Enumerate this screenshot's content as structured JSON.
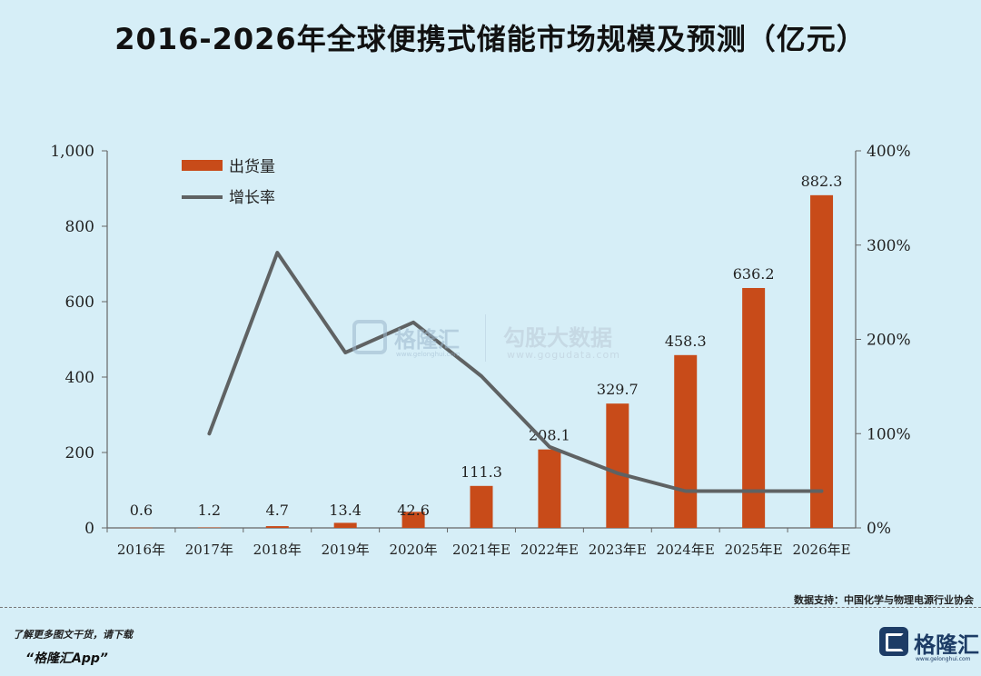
{
  "title": "2016-2026年全球便携式储能市场规模及预测（亿元）",
  "chart_data": {
    "type": "bar+line",
    "categories": [
      "2016年",
      "2017年",
      "2018年",
      "2019年",
      "2020年",
      "2021年E",
      "2022年E",
      "2023年E",
      "2024年E",
      "2025年E",
      "2026年E"
    ],
    "series": [
      {
        "name": "出货量",
        "type": "bar",
        "axis": "left",
        "values": [
          0.6,
          1.2,
          4.7,
          13.4,
          42.6,
          111.3,
          208.1,
          329.7,
          458.3,
          636.2,
          882.3
        ],
        "labels": [
          "0.6",
          "1.2",
          "4.7",
          "13.4",
          "42.6",
          "111.3",
          "208.1",
          "329.7",
          "458.3",
          "636.2",
          "882.3"
        ]
      },
      {
        "name": "增长率",
        "type": "line",
        "axis": "right",
        "values": [
          null,
          100,
          292,
          186,
          218,
          161,
          86,
          58,
          39,
          39,
          39
        ]
      }
    ],
    "y_left": {
      "min": 0,
      "max": 1000,
      "ticks": [
        0,
        200,
        400,
        600,
        800,
        1000
      ],
      "tick_labels": [
        "0",
        "200",
        "400",
        "600",
        "800",
        "1,000"
      ]
    },
    "y_right": {
      "min": 0,
      "max": 400,
      "ticks": [
        0,
        100,
        200,
        300,
        400
      ],
      "tick_labels": [
        "0%",
        "100%",
        "200%",
        "300%",
        "400%"
      ]
    },
    "legend": [
      "出货量",
      "增长率"
    ],
    "colors": {
      "bar": "#c84b19",
      "line": "#5f6263",
      "axis": "#666666"
    }
  },
  "watermark": {
    "brand": "格隆汇",
    "brand_url": "www.gelonghui.com",
    "sub": "勾股大数据",
    "sub_url": "www.gogudata.com"
  },
  "source": "数据支持：中国化学与物理电源行业协会",
  "footer": {
    "line1": "了解更多图文干货，请下载",
    "line2": "“格隆汇App”",
    "brand": "格隆汇",
    "brand_url": "www.gelonghui.com"
  }
}
